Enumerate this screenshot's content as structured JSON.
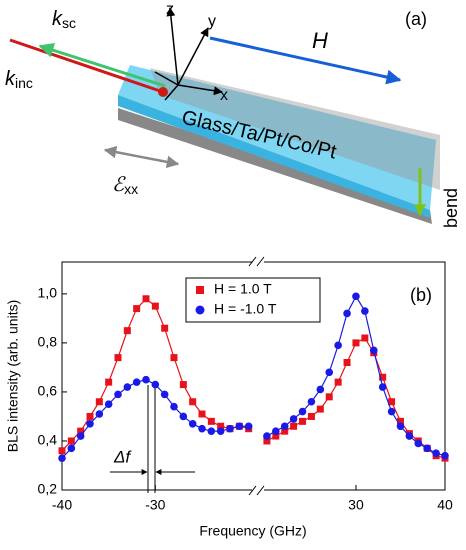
{
  "diagram": {
    "panel": "(a)",
    "k_sc": {
      "base": "k",
      "sub": "sc"
    },
    "k_inc": {
      "base": "k",
      "sub": "inc"
    },
    "axis_z": "z",
    "axis_y": "y",
    "axis_x": "x",
    "field": "H",
    "sample": "Glass/Ta/Pt/Co/Pt",
    "bend": "bend",
    "strain": {
      "base": "ℰ",
      "sub": "xx"
    }
  },
  "chart_data": {
    "type": "scatter",
    "panel": "(b)",
    "x_label": "Frequency (GHz)",
    "y_label": "BLS intensity (arb. units)",
    "annotation": "Δf",
    "x_segments": [
      {
        "xlim": [
          -40,
          -19
        ],
        "xticks": [
          -40,
          -30
        ]
      },
      {
        "xlim": [
          19,
          40
        ],
        "xticks": [
          30,
          40
        ]
      }
    ],
    "ylim": [
      0.2,
      1.13
    ],
    "yticks": [
      {
        "value": 0.2,
        "label": "0,2"
      },
      {
        "value": 0.4,
        "label": "0,4"
      },
      {
        "value": 0.6,
        "label": "0,6"
      },
      {
        "value": 0.8,
        "label": "0,8"
      },
      {
        "value": 1.0,
        "label": "1,0"
      }
    ],
    "series": [
      {
        "name": "H = 1.0 T",
        "color": "#e8121a",
        "marker": "square",
        "x": [
          -40,
          -39,
          -38,
          -37,
          -36,
          -35,
          -34,
          -33,
          -32,
          -31,
          -30,
          -29,
          -28,
          -27,
          -26,
          -25,
          -24,
          -23,
          -22,
          -21,
          -20,
          20,
          21,
          22,
          23,
          24,
          25,
          26,
          27,
          28,
          29,
          30,
          31,
          32,
          33,
          34,
          35,
          36,
          37,
          38,
          39,
          40
        ],
        "values": [
          0.36,
          0.4,
          0.44,
          0.5,
          0.56,
          0.64,
          0.74,
          0.85,
          0.94,
          0.98,
          0.95,
          0.86,
          0.74,
          0.63,
          0.56,
          0.51,
          0.48,
          0.46,
          0.45,
          0.46,
          0.45,
          0.4,
          0.42,
          0.44,
          0.46,
          0.48,
          0.5,
          0.53,
          0.58,
          0.64,
          0.72,
          0.8,
          0.82,
          0.76,
          0.66,
          0.56,
          0.48,
          0.43,
          0.4,
          0.37,
          0.34,
          0.33
        ]
      },
      {
        "name": "H = -1.0 T",
        "color": "#1a1ae8",
        "marker": "circle",
        "x": [
          -40,
          -39,
          -38,
          -37,
          -36,
          -35,
          -34,
          -33,
          -32,
          -31,
          -30,
          -29,
          -28,
          -27,
          -26,
          -25,
          -24,
          -23,
          -22,
          -21,
          -20,
          20,
          21,
          22,
          23,
          24,
          25,
          26,
          27,
          28,
          29,
          30,
          31,
          32,
          33,
          34,
          35,
          36,
          37,
          38,
          39,
          40
        ],
        "values": [
          0.33,
          0.37,
          0.42,
          0.47,
          0.51,
          0.55,
          0.59,
          0.62,
          0.64,
          0.65,
          0.63,
          0.59,
          0.54,
          0.5,
          0.47,
          0.45,
          0.44,
          0.44,
          0.45,
          0.46,
          0.46,
          0.42,
          0.44,
          0.46,
          0.49,
          0.52,
          0.56,
          0.61,
          0.68,
          0.79,
          0.92,
          0.99,
          0.93,
          0.77,
          0.62,
          0.52,
          0.46,
          0.42,
          0.39,
          0.37,
          0.35,
          0.34
        ]
      }
    ]
  }
}
